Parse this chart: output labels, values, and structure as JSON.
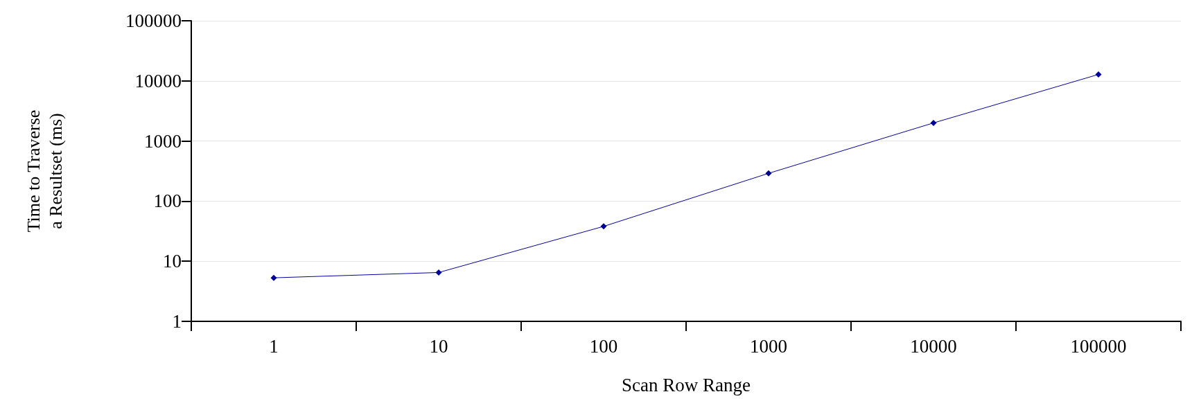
{
  "chart_data": {
    "type": "line",
    "xlabel": "Scan Row Range",
    "ylabel": "Time to Traverse a Resultset (ms)",
    "categories": [
      "1",
      "10",
      "100",
      "1000",
      "10000",
      "100000"
    ],
    "series": [
      {
        "color": "#000099",
        "values": [
          5.3,
          6.5,
          38,
          290,
          2000,
          12800
        ]
      }
    ],
    "log": "y",
    "ylim": [
      1,
      100000
    ],
    "yticks": [
      1,
      10,
      100,
      1000,
      10000,
      100000
    ],
    "grid": "y",
    "marker": "diamond",
    "line_style": "solid"
  }
}
